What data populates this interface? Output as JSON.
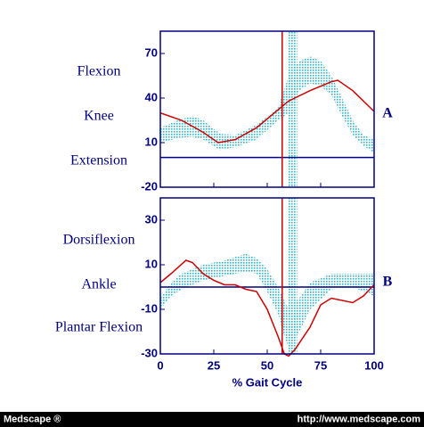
{
  "chart_data": [
    {
      "type": "line",
      "labels": [
        "Flexion",
        "Knee",
        "Extension"
      ],
      "panel_label": "A",
      "ylim": [
        -20,
        85
      ],
      "yticks": [
        -20,
        10,
        40,
        70
      ],
      "xlim": [
        0,
        100
      ],
      "xticks": [
        0,
        25,
        50,
        75,
        100
      ],
      "xtick_labels": false,
      "hline": 0,
      "vline": 57,
      "vband": [
        60,
        64
      ],
      "series": [
        {
          "color": "#cc0000",
          "x": [
            0,
            10,
            20,
            27,
            35,
            45,
            55,
            60,
            70,
            80,
            83,
            90,
            100
          ],
          "values": [
            30,
            25,
            17,
            10,
            12,
            20,
            32,
            38,
            45,
            51,
            52,
            45,
            31
          ]
        }
      ],
      "band": {
        "color": "#30b8cc",
        "x": [
          0,
          8,
          15,
          20,
          28,
          35,
          45,
          55,
          60,
          65,
          70,
          75,
          80,
          85,
          90,
          95,
          100
        ],
        "upper": [
          20,
          25,
          28,
          25,
          16,
          15,
          22,
          33,
          55,
          65,
          68,
          65,
          55,
          40,
          25,
          15,
          12
        ],
        "lower": [
          10,
          13,
          14,
          12,
          5,
          7,
          12,
          25,
          30,
          45,
          50,
          48,
          42,
          28,
          15,
          8,
          3
        ]
      }
    },
    {
      "type": "line",
      "labels": [
        "Dorsiflexion",
        "Ankle",
        "Plantar Flexion"
      ],
      "panel_label": "B",
      "ylim": [
        -30,
        40
      ],
      "yticks": [
        -30,
        -10,
        10,
        30
      ],
      "xlim": [
        0,
        100
      ],
      "xticks": [
        0,
        25,
        50,
        75,
        100
      ],
      "xtick_labels": true,
      "xlabel": "% Gait Cycle",
      "hline": 0,
      "vline": 57,
      "vband": [
        60,
        64
      ],
      "series": [
        {
          "color": "#cc0000",
          "x": [
            0,
            5,
            12,
            15,
            20,
            25,
            30,
            35,
            40,
            45,
            50,
            55,
            58,
            60,
            63,
            70,
            75,
            80,
            90,
            95,
            100
          ],
          "values": [
            2,
            6,
            12,
            11,
            6,
            3,
            1,
            1,
            -1,
            -2,
            -10,
            -22,
            -30,
            -31,
            -28,
            -18,
            -8,
            -5,
            -7,
            -4,
            1
          ]
        }
      ],
      "band": {
        "color": "#30b8cc",
        "x": [
          0,
          5,
          10,
          20,
          30,
          40,
          45,
          50,
          55,
          60,
          65,
          70,
          80,
          90,
          100
        ],
        "upper": [
          -5,
          2,
          6,
          10,
          12,
          15,
          13,
          8,
          0,
          -10,
          -5,
          2,
          6,
          6,
          6
        ],
        "lower": [
          -10,
          -4,
          -1,
          3,
          5,
          7,
          6,
          -2,
          -12,
          -28,
          -20,
          -10,
          -1,
          0,
          -4
        ]
      }
    }
  ],
  "footer": {
    "left": "Medscape ®",
    "right": "http://www.medscape.com"
  }
}
